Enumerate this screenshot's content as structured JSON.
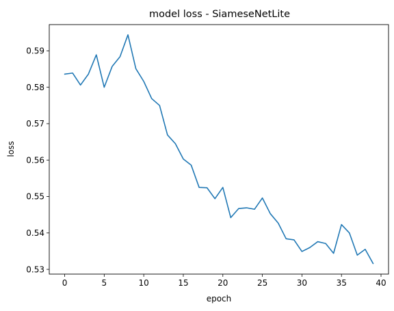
{
  "chart_data": {
    "type": "line",
    "title": "model loss - SiameseNetLite",
    "xlabel": "epoch",
    "ylabel": "loss",
    "xlim": [
      -1.95,
      40.95
    ],
    "ylim": [
      0.5287,
      0.5972
    ],
    "xticks": [
      0,
      5,
      10,
      15,
      20,
      25,
      30,
      35,
      40
    ],
    "yticks": [
      0.53,
      0.54,
      0.55,
      0.56,
      0.57,
      0.58,
      0.59
    ],
    "xtick_labels": [
      "0",
      "5",
      "10",
      "15",
      "20",
      "25",
      "30",
      "35",
      "40"
    ],
    "ytick_labels": [
      "0.53",
      "0.54",
      "0.55",
      "0.56",
      "0.57",
      "0.58",
      "0.59"
    ],
    "grid": false,
    "series": [
      {
        "color": "#1f77b4",
        "x": [
          0,
          1,
          2,
          3,
          4,
          5,
          6,
          7,
          8,
          9,
          10,
          11,
          12,
          13,
          14,
          15,
          16,
          17,
          18,
          19,
          20,
          21,
          22,
          23,
          24,
          25,
          26,
          27,
          28,
          29,
          30,
          31,
          32,
          33,
          34,
          35,
          36,
          37,
          38,
          39
        ],
        "values": [
          0.5836,
          0.5839,
          0.5806,
          0.5836,
          0.5889,
          0.58,
          0.5857,
          0.5884,
          0.5944,
          0.5851,
          0.5816,
          0.5769,
          0.575,
          0.5669,
          0.5645,
          0.5603,
          0.5586,
          0.5525,
          0.5524,
          0.5494,
          0.5525,
          0.5442,
          0.5467,
          0.5469,
          0.5465,
          0.5496,
          0.5453,
          0.5427,
          0.5384,
          0.5381,
          0.5349,
          0.536,
          0.5376,
          0.5371,
          0.5344,
          0.5423,
          0.54,
          0.5339,
          0.5355,
          0.5316
        ]
      }
    ]
  }
}
